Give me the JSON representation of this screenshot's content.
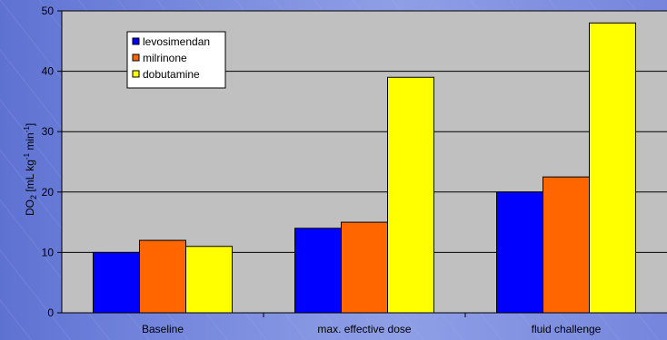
{
  "chart_data": {
    "type": "bar",
    "categories": [
      "Baseline",
      "max. effective dose",
      "fluid challenge"
    ],
    "series": [
      {
        "name": "levosimendan",
        "color": "#0000ff",
        "values": [
          10,
          14,
          20
        ]
      },
      {
        "name": "milrinone",
        "color": "#ff6600",
        "values": [
          12,
          15,
          22.5
        ]
      },
      {
        "name": "dobutamine",
        "color": "#ffff00",
        "values": [
          11,
          39,
          48
        ]
      }
    ],
    "ylim": [
      0,
      50
    ],
    "yticks": [
      0,
      10,
      20,
      30,
      40,
      50
    ],
    "ylabel": {
      "base": "DO",
      "sub": "2",
      "unit_open": " [mL kg",
      "sup1": "-1",
      "unit_mid": " min",
      "sup2": "-1",
      "unit_close": "]"
    },
    "grid": true,
    "legend_position": "top-left",
    "plot_background": "#c0c0c0"
  }
}
